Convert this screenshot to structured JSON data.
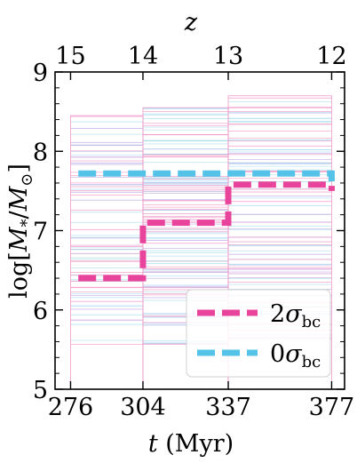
{
  "chart_data": {
    "type": "line",
    "axes": {
      "bottom": {
        "label": "t (Myr)",
        "range": [
          270,
          382
        ],
        "ticks": [
          {
            "value": 276,
            "label": "276"
          },
          {
            "value": 304,
            "label": "304"
          },
          {
            "value": 337,
            "label": "337"
          },
          {
            "value": 377,
            "label": "377"
          }
        ]
      },
      "top": {
        "label": "z",
        "ticks": [
          {
            "value": 276,
            "label": "15"
          },
          {
            "value": 304,
            "label": "14"
          },
          {
            "value": 337,
            "label": "13"
          },
          {
            "value": 377,
            "label": "12"
          }
        ]
      },
      "left": {
        "label": "log[M*/M⊙]",
        "range": [
          5,
          9
        ],
        "ticks": [
          {
            "value": 5,
            "label": "5"
          },
          {
            "value": 6,
            "label": "6"
          },
          {
            "value": 7,
            "label": "7"
          },
          {
            "value": 8,
            "label": "8"
          },
          {
            "value": 9,
            "label": "9"
          }
        ]
      }
    },
    "bins": [
      {
        "t_start": 276,
        "t_end": 304,
        "min": 5.0,
        "max": 8.45
      },
      {
        "t_start": 304,
        "t_end": 337,
        "min": 5.0,
        "max": 8.55
      },
      {
        "t_start": 337,
        "t_end": 377,
        "min": 5.0,
        "max": 8.7
      }
    ],
    "series": [
      {
        "name": "2σbc",
        "color": "#e8449b",
        "style": "dashed",
        "points": [
          [
            279,
            6.4
          ],
          [
            304,
            6.4
          ],
          [
            304,
            7.1
          ],
          [
            337,
            7.1
          ],
          [
            337,
            7.58
          ],
          [
            377,
            7.58
          ],
          [
            377,
            7.5
          ]
        ]
      },
      {
        "name": "0σbc",
        "color": "#55c3e8",
        "style": "dashed",
        "points": [
          [
            279,
            7.72
          ],
          [
            304,
            7.72
          ],
          [
            304,
            7.72
          ],
          [
            337,
            7.72
          ],
          [
            337,
            7.72
          ],
          [
            377,
            7.72
          ],
          [
            377,
            7.62
          ]
        ]
      }
    ],
    "legend": {
      "placement": "bottom-right",
      "entries": [
        {
          "name": "2σbc",
          "symbol": "σ",
          "sub": "bc",
          "prefix": "2",
          "color": "#e8449b"
        },
        {
          "name": "0σbc",
          "symbol": "σ",
          "sub": "bc",
          "prefix": "0",
          "color": "#55c3e8"
        }
      ]
    },
    "colors": {
      "pink": "#e8449b",
      "pink_light": "#ef8fc2",
      "cyan": "#55c3e8",
      "cyan_light": "#a6dcef",
      "lavender": "#b9a6e6"
    }
  }
}
